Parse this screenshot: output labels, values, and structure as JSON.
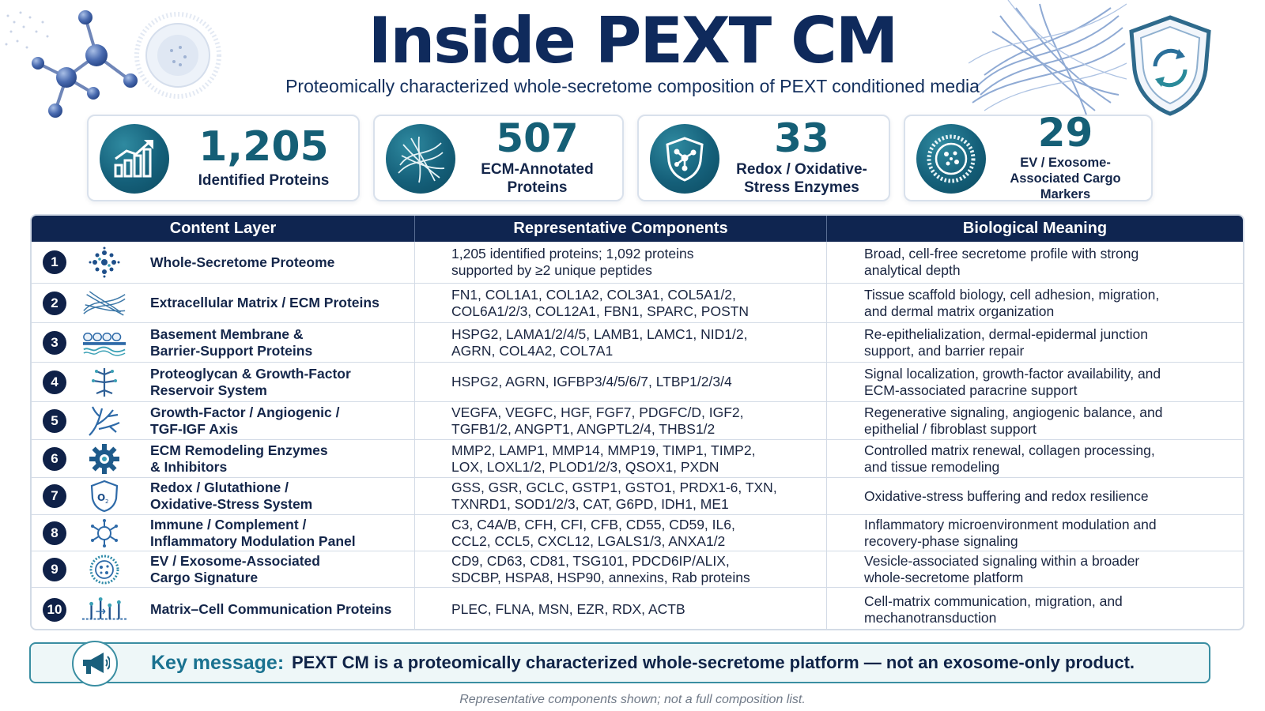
{
  "header": {
    "title": "Inside PEXT CM",
    "subtitle": "Proteomically characterized whole-secretome composition of PEXT conditioned media"
  },
  "stats": [
    {
      "value": "1,205",
      "label": "Identified Proteins",
      "icon": "chart-growth-icon"
    },
    {
      "value": "507",
      "label": "ECM-Annotated\nProteins",
      "icon": "fiber-network-icon"
    },
    {
      "value": "33",
      "label": "Redox / Oxidative-\nStress Enzymes",
      "icon": "shield-molecule-icon"
    },
    {
      "value": "29",
      "label": "EV / Exosome-\nAssociated Cargo Markers",
      "icon": "vesicle-icon"
    }
  ],
  "table": {
    "headers": [
      "Content Layer",
      "Representative Components",
      "Biological Meaning"
    ],
    "rows": [
      {
        "num": "1",
        "icon": "molecule-cluster-icon",
        "layer": "Whole-Secretome Proteome",
        "components": "1,205 identified proteins; 1,092 proteins\nsupported by ≥2 unique peptides",
        "meaning": "Broad, cell-free secretome profile with strong\nanalytical depth"
      },
      {
        "num": "2",
        "icon": "fibers-icon",
        "layer": "Extracellular Matrix / ECM Proteins",
        "components": "FN1, COL1A1, COL1A2, COL3A1, COL5A1/2,\nCOL6A1/2/3, COL12A1, FBN1, SPARC, POSTN",
        "meaning": "Tissue scaffold biology, cell adhesion, migration,\nand dermal matrix organization"
      },
      {
        "num": "3",
        "icon": "membrane-layer-icon",
        "layer": "Basement Membrane &\nBarrier-Support Proteins",
        "components": "HSPG2, LAMA1/2/4/5, LAMB1, LAMC1, NID1/2,\nAGRN, COL4A2, COL7A1",
        "meaning": "Re-epithelialization, dermal-epidermal junction\nsupport, and barrier repair"
      },
      {
        "num": "4",
        "icon": "proteoglycan-icon",
        "layer": "Proteoglycan & Growth-Factor\nReservoir System",
        "components": "HSPG2, AGRN, IGFBP3/4/5/6/7, LTBP1/2/3/4",
        "meaning": "Signal localization, growth-factor availability, and\nECM-associated paracrine support"
      },
      {
        "num": "5",
        "icon": "branching-vessel-icon",
        "layer": "Growth-Factor / Angiogenic /\nTGF-IGF Axis",
        "components": "VEGFA, VEGFC, HGF, FGF7, PDGFC/D, IGF2,\nTGFB1/2, ANGPT1, ANGPTL2/4, THBS1/2",
        "meaning": "Regenerative signaling, angiogenic balance, and\nepithelial / fibroblast support"
      },
      {
        "num": "6",
        "icon": "gear-icon",
        "layer": "ECM Remodeling Enzymes\n& Inhibitors",
        "components": "MMP2, LAMP1, MMP14, MMP19, TIMP1, TIMP2,\nLOX, LOXL1/2, PLOD1/2/3, QSOX1, PXDN",
        "meaning": "Controlled matrix renewal, collagen processing,\nand tissue remodeling"
      },
      {
        "num": "7",
        "icon": "oxygen-shield-icon",
        "layer": "Redox / Glutathione /\nOxidative-Stress System",
        "components": "GSS, GSR, GCLC, GSTP1, GSTO1, PRDX1-6, TXN,\nTXNRD1, SOD1/2/3, CAT, G6PD, IDH1, ME1",
        "meaning": "Oxidative-stress buffering and redox resilience"
      },
      {
        "num": "8",
        "icon": "immune-cell-icon",
        "layer": "Immune / Complement /\nInflammatory Modulation Panel",
        "components": "C3, C4A/B, CFH, CFI, CFB, CD55, CD59, IL6,\nCCL2, CCL5, CXCL12, LGALS1/3, ANXA1/2",
        "meaning": "Inflammatory microenvironment modulation and\nrecovery-phase signaling"
      },
      {
        "num": "9",
        "icon": "exosome-icon",
        "layer": "EV / Exosome-Associated\nCargo Signature",
        "components": "CD9, CD63, CD81, TSG101, PDCD6IP/ALIX,\nSDCBP, HSPA8, HSP90, annexins, Rab proteins",
        "meaning": "Vesicle-associated signaling within a broader\nwhole-secretome platform"
      },
      {
        "num": "10",
        "icon": "cell-communication-icon",
        "layer": "Matrix–Cell Communication Proteins",
        "components": "PLEC, FLNA, MSN, EZR, RDX, ACTB",
        "meaning": "Cell-matrix communication, migration, and\nmechanotransduction"
      }
    ]
  },
  "key_message": {
    "label": "Key message:",
    "text": "PEXT CM is a proteomically characterized whole-secretome platform — not an exosome-only product.",
    "icon": "megaphone-icon"
  },
  "footnote": "Representative components shown; not a full composition list.",
  "colors": {
    "navy": "#0f2550",
    "teal": "#15607a",
    "accent_teal": "#1a7290"
  }
}
